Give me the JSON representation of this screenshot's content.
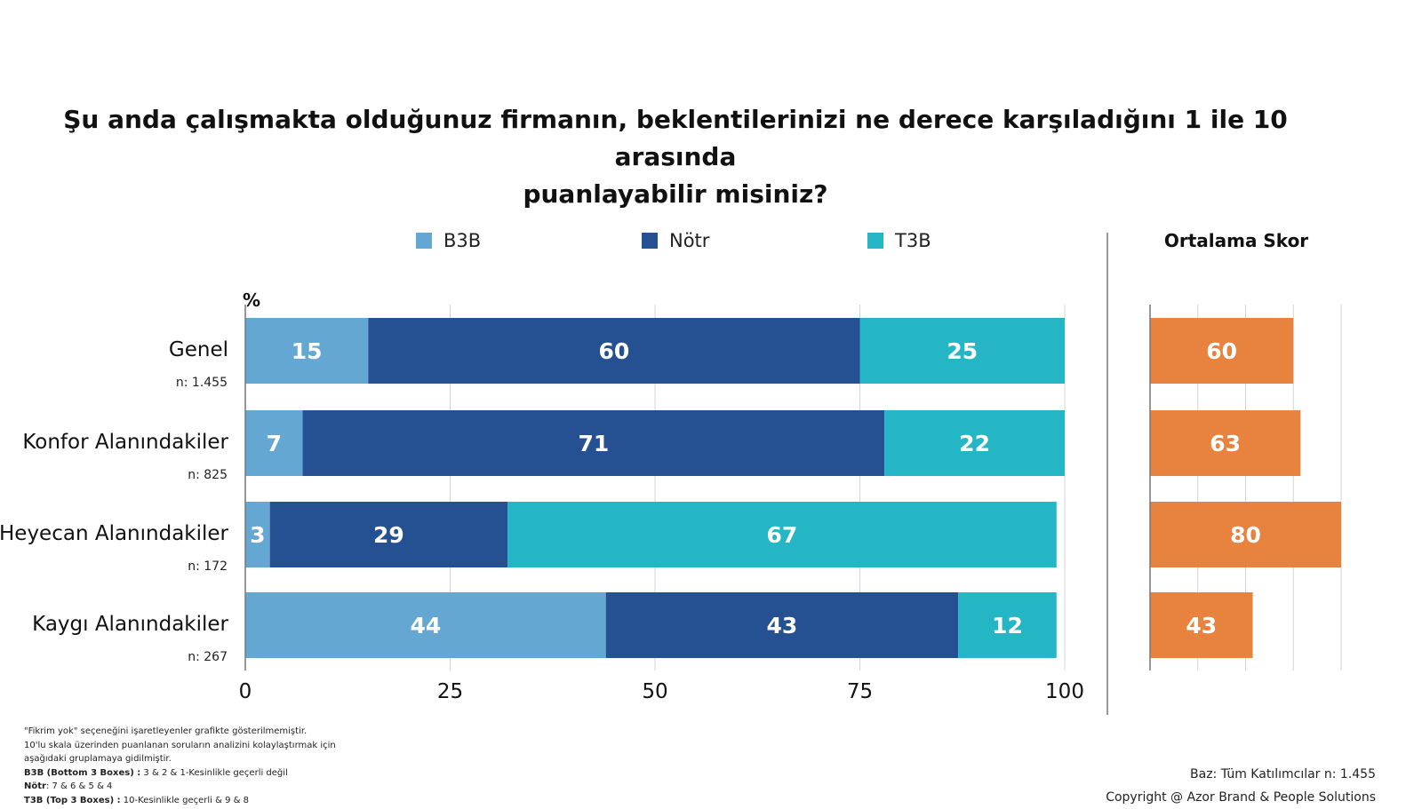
{
  "title_line1": "Şu anda çalışmakta olduğunuz firmanın, beklentilerinizi ne derece karşıladığını 1 ile 10 arasında",
  "title_line2": "puanlayabilir misiniz?",
  "chart_data": [
    {
      "type": "bar",
      "orientation": "horizontal",
      "stacked": true,
      "unit_label": "%",
      "categories": [
        "Genel",
        "Konfor Alanındakiler",
        "Heyecan Alanındakiler",
        "Kaygı Alanındakiler"
      ],
      "category_n": [
        "n: 1.455",
        "n: 825",
        "n: 172",
        "n: 267"
      ],
      "series": [
        {
          "name": "B3B",
          "color": "#64a7d2",
          "values": [
            15,
            7,
            3,
            44
          ]
        },
        {
          "name": "Nötr",
          "color": "#255192",
          "values": [
            60,
            71,
            29,
            43
          ]
        },
        {
          "name": "T3B",
          "color": "#24b6c5",
          "values": [
            25,
            22,
            67,
            12
          ]
        }
      ],
      "xlim": [
        0,
        100
      ],
      "xticks": [
        0,
        25,
        50,
        75,
        100
      ],
      "grid": true,
      "legend": "top-center"
    },
    {
      "type": "bar",
      "orientation": "horizontal",
      "title": "Ortalama Skor",
      "categories": [
        "Genel",
        "Konfor Alanındakiler",
        "Heyecan Alanındakiler",
        "Kaygı Alanındakiler"
      ],
      "values": [
        60,
        63,
        80,
        43
      ],
      "color": "#e8833f",
      "xlim": [
        0,
        80
      ],
      "grid": true
    }
  ],
  "footnote": {
    "line1": "\"Fikrim yok\" seçeneğini işaretleyenler grafikte gösterilmemiştir.",
    "line2": "10'lu skala üzerinden puanlanan soruların analizini kolaylaştırmak için",
    "line3": "aşağıdaki gruplamaya gidilmiştir.",
    "b3b_label": "B3B (Bottom 3 Boxes) :",
    "b3b_text": " 3 & 2 & 1-Kesinlikle geçerli değil",
    "notr_label": "Nötr",
    "notr_text": ": 7 & 6 & 5 & 4",
    "t3b_label": "T3B (Top 3 Boxes) :",
    "t3b_text": " 10-Kesinlikle geçerli & 9 & 8"
  },
  "footer": {
    "base": "Baz: Tüm Katılımcılar n: 1.455",
    "copyright": "Copyright @ Azor Brand & People Solutions"
  }
}
